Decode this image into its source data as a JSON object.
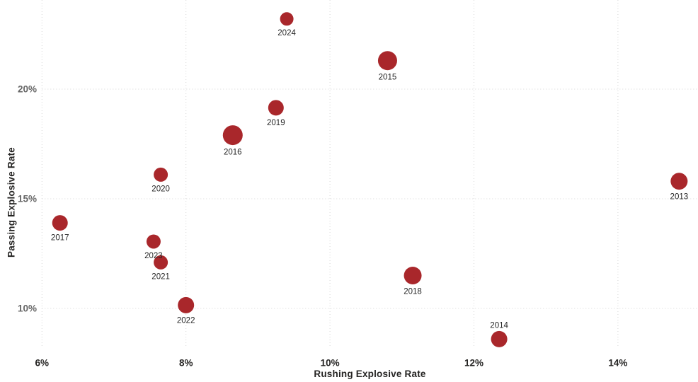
{
  "chart_data": {
    "type": "scatter",
    "title": "",
    "xlabel": "Rushing Explosive Rate",
    "ylabel": "Passing Explosive Rate",
    "x_ticks": [
      {
        "label": "6%",
        "value": 6
      },
      {
        "label": "8%",
        "value": 8
      },
      {
        "label": "10%",
        "value": 10
      },
      {
        "label": "12%",
        "value": 12
      },
      {
        "label": "14%",
        "value": 14
      }
    ],
    "y_ticks": [
      {
        "label": "10%",
        "value": 10
      },
      {
        "label": "15%",
        "value": 15
      },
      {
        "label": "20%",
        "value": 20
      }
    ],
    "xlim": [
      5.4,
      15.1
    ],
    "ylim": [
      8.3,
      24.1
    ],
    "grid": "dotted",
    "legend_position": "none",
    "point_color": "#A9272B",
    "points": [
      {
        "label": "2013",
        "x": 14.85,
        "y": 15.8,
        "r": 12,
        "label_pos": "below"
      },
      {
        "label": "2014",
        "x": 12.35,
        "y": 8.6,
        "r": 11.5,
        "label_pos": "above"
      },
      {
        "label": "2015",
        "x": 10.8,
        "y": 21.3,
        "r": 13.5,
        "label_pos": "below"
      },
      {
        "label": "2016",
        "x": 8.65,
        "y": 17.9,
        "r": 14,
        "label_pos": "below"
      },
      {
        "label": "2017",
        "x": 6.25,
        "y": 13.9,
        "r": 11,
        "label_pos": "below"
      },
      {
        "label": "2018",
        "x": 11.15,
        "y": 11.5,
        "r": 12.5,
        "label_pos": "below"
      },
      {
        "label": "2019",
        "x": 9.25,
        "y": 19.15,
        "r": 11,
        "label_pos": "below"
      },
      {
        "label": "2020",
        "x": 7.65,
        "y": 16.1,
        "r": 10,
        "label_pos": "below"
      },
      {
        "label": "2021",
        "x": 7.65,
        "y": 12.1,
        "r": 10,
        "label_pos": "below"
      },
      {
        "label": "2022",
        "x": 8.0,
        "y": 10.15,
        "r": 11.5,
        "label_pos": "below"
      },
      {
        "label": "2023",
        "x": 7.55,
        "y": 13.05,
        "r": 10,
        "label_pos": "below"
      },
      {
        "label": "2024",
        "x": 9.4,
        "y": 23.2,
        "r": 9.5,
        "label_pos": "below"
      }
    ]
  },
  "colors": {
    "background": "#FFFFFF",
    "gridline": "#D6D6D6",
    "x_tick_label": "#252423",
    "y_tick_label": "#666666",
    "axis_title": "#252423",
    "point_label": "#252525"
  }
}
